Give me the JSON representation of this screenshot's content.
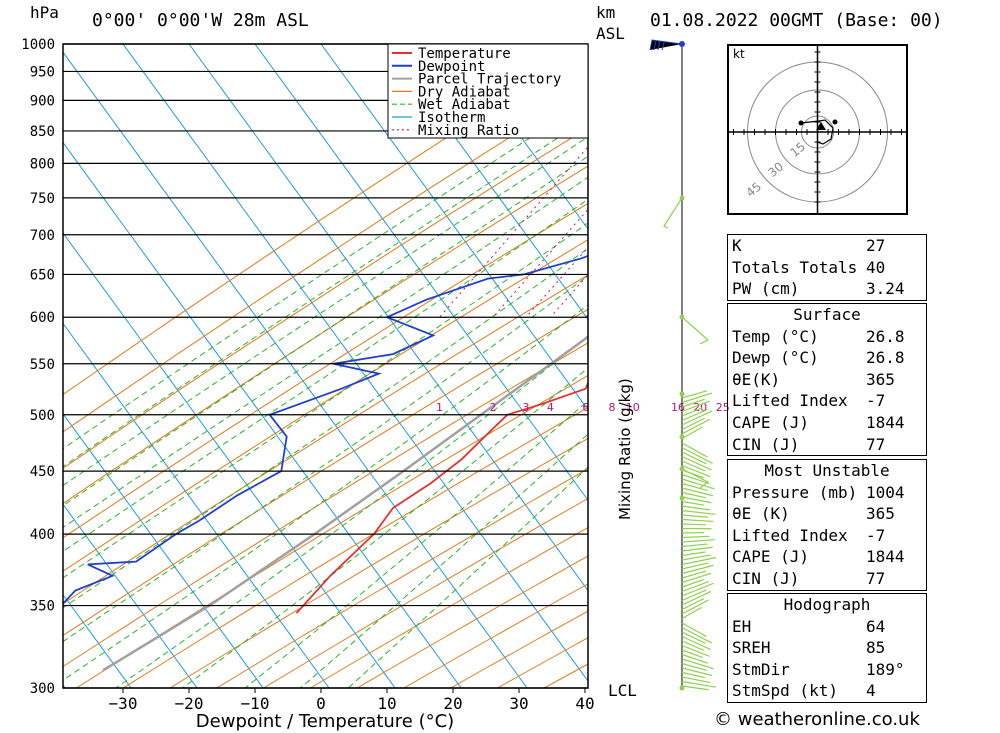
{
  "header": {
    "hpa_label": "hPa",
    "location": "0°00' 0°00'W 28m ASL",
    "km_label": "km",
    "asl_label": "ASL",
    "datetime": "01.08.2022 00GMT (Base: 00)"
  },
  "chart_data": {
    "type": "line",
    "xlabel": "Dewpoint / Temperature (°C)",
    "ylabel": "hPa",
    "right_label": "Mixing Ratio (g/kg)",
    "pressure_ticks": [
      300,
      350,
      400,
      450,
      500,
      550,
      600,
      650,
      700,
      750,
      800,
      850,
      900,
      950,
      1000
    ],
    "temp_ticks": [
      -30,
      -20,
      -10,
      0,
      10,
      20,
      30,
      40
    ],
    "xlim": [
      -40,
      40
    ],
    "ylim": [
      1000,
      300
    ],
    "lcl_label": "LCL",
    "mixing_ratio_labels": [
      "1",
      "2",
      "3",
      "4",
      "6",
      "8",
      "10",
      "16",
      "20",
      "25"
    ],
    "legend": [
      "Temperature",
      "Dewpoint",
      "Parcel Trajectory",
      "Dry Adiabat",
      "Wet Adiabat",
      "Isotherm",
      "Mixing Ratio"
    ],
    "series": [
      {
        "name": "Temperature",
        "color": "#e0322d",
        "points": [
          [
            26.5,
            1000
          ],
          [
            25,
            985
          ],
          [
            27,
            970
          ],
          [
            30,
            950
          ],
          [
            30.5,
            920
          ],
          [
            31,
            880
          ],
          [
            31,
            850
          ],
          [
            29,
            810
          ],
          [
            25,
            780
          ],
          [
            21,
            740
          ],
          [
            18,
            700
          ],
          [
            16,
            670
          ],
          [
            14.5,
            650
          ],
          [
            15,
            630
          ],
          [
            13,
            600
          ],
          [
            12,
            580
          ],
          [
            8,
            560
          ],
          [
            6,
            545
          ],
          [
            7,
            525
          ],
          [
            2,
            510
          ],
          [
            -2,
            500
          ],
          [
            -3,
            480
          ],
          [
            -4,
            460
          ],
          [
            -6,
            440
          ],
          [
            -9,
            420
          ],
          [
            -9,
            400
          ],
          [
            -10,
            385
          ],
          [
            -11,
            370
          ],
          [
            -12,
            345
          ]
        ]
      },
      {
        "name": "Dewpoint",
        "color": "#1f3fd0",
        "points": [
          [
            25,
            1000
          ],
          [
            26.5,
            990
          ],
          [
            22,
            960
          ],
          [
            10,
            940
          ],
          [
            9,
            920
          ],
          [
            6,
            905
          ],
          [
            3,
            870
          ],
          [
            2,
            850
          ],
          [
            1,
            810
          ],
          [
            0,
            760
          ],
          [
            -1,
            720
          ],
          [
            -1,
            700
          ],
          [
            -8,
            670
          ],
          [
            -15,
            650
          ],
          [
            -20,
            645
          ],
          [
            -27,
            620
          ],
          [
            -31,
            600
          ],
          [
            -22,
            580
          ],
          [
            -26,
            560
          ],
          [
            -34,
            550
          ],
          [
            -26,
            540
          ],
          [
            -30,
            525
          ],
          [
            -38,
            500
          ],
          [
            -33,
            480
          ],
          [
            -30,
            450
          ],
          [
            -34,
            430
          ],
          [
            -37,
            410
          ],
          [
            -39,
            400
          ],
          [
            -42,
            380
          ],
          [
            -49,
            378
          ],
          [
            -44,
            370
          ],
          [
            -48,
            360
          ],
          [
            -49,
            340
          ],
          [
            -52,
            320
          ],
          [
            -52,
            310
          ],
          [
            -53,
            300
          ]
        ]
      },
      {
        "name": "Parcel Trajectory",
        "color": "#a0a0a0",
        "points": [
          [
            26.8,
            1000
          ],
          [
            24.5,
            950
          ],
          [
            22,
            900
          ],
          [
            19.5,
            850
          ],
          [
            17,
            800
          ],
          [
            14,
            750
          ],
          [
            11,
            700
          ],
          [
            7.5,
            650
          ],
          [
            3.5,
            600
          ],
          [
            -1,
            550
          ],
          [
            -6,
            500
          ],
          [
            -11.5,
            450
          ],
          [
            -18,
            400
          ],
          [
            -26,
            350
          ],
          [
            -35,
            310
          ]
        ]
      }
    ]
  },
  "hodograph": {
    "unit": "kt",
    "rings": [
      "15",
      "30",
      "45"
    ]
  },
  "indices": [
    {
      "label": "K",
      "value": "27"
    },
    {
      "label": "Totals Totals",
      "value": "40"
    },
    {
      "label": "PW (cm)",
      "value": "3.24"
    }
  ],
  "surface": {
    "title": "Surface",
    "rows": [
      {
        "label": "Temp (°C)",
        "value": "26.8"
      },
      {
        "label": "Dewp (°C)",
        "value": "26.8"
      },
      {
        "label": "θE(K)",
        "value": "365"
      },
      {
        "label": "Lifted Index",
        "value": "-7"
      },
      {
        "label": "CAPE (J)",
        "value": "1844"
      },
      {
        "label": "CIN (J)",
        "value": "77"
      }
    ]
  },
  "most_unstable": {
    "title": "Most Unstable",
    "rows": [
      {
        "label": "Pressure (mb)",
        "value": "1004"
      },
      {
        "label": "θE (K)",
        "value": "365"
      },
      {
        "label": "Lifted Index",
        "value": "-7"
      },
      {
        "label": "CAPE (J)",
        "value": "1844"
      },
      {
        "label": "CIN (J)",
        "value": "77"
      }
    ]
  },
  "hodograph_table": {
    "title": "Hodograph",
    "rows": [
      {
        "label": "EH",
        "value": "64"
      },
      {
        "label": "SREH",
        "value": "85"
      },
      {
        "label": "StmDir",
        "value": "189°"
      },
      {
        "label": "StmSpd (kt)",
        "value": "4"
      }
    ]
  },
  "credit": "© weatheronline.co.uk"
}
